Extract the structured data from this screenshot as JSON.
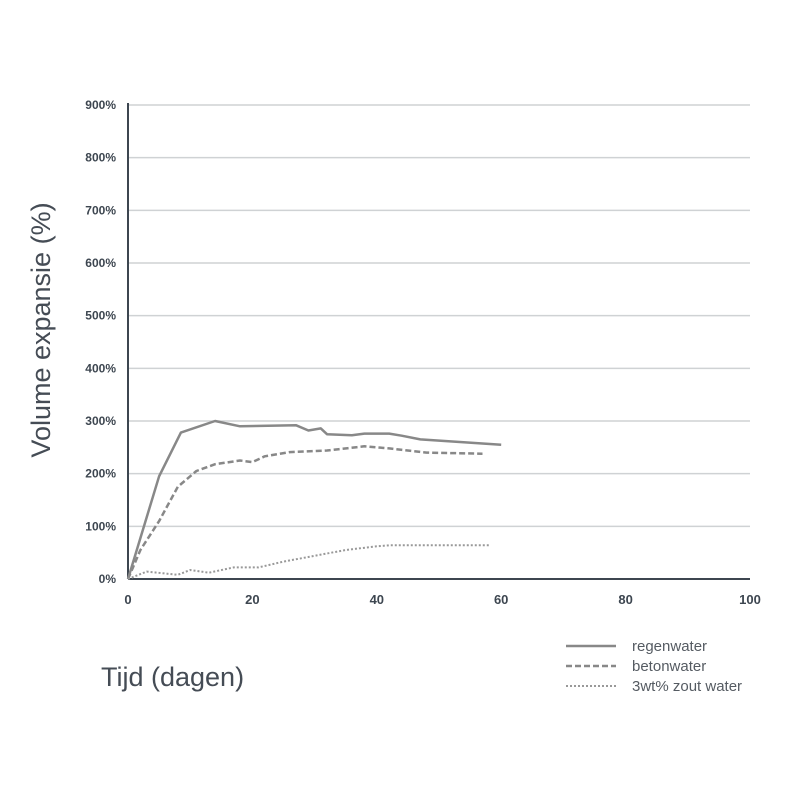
{
  "chart_data": {
    "type": "line",
    "title": "",
    "xlabel": "Tijd (dagen)",
    "ylabel": "Volume expansie (%)",
    "xlim": [
      0,
      100
    ],
    "ylim": [
      0,
      900
    ],
    "x_ticks": [
      0,
      20,
      40,
      60,
      80,
      100
    ],
    "x_tick_labels": [
      "0",
      "20",
      "40",
      "60",
      "80",
      "100"
    ],
    "y_ticks": [
      0,
      100,
      200,
      300,
      400,
      500,
      600,
      700,
      800,
      900
    ],
    "y_tick_labels": [
      "0%",
      "100%",
      "200%",
      "300%",
      "400%",
      "500%",
      "600%",
      "700%",
      "800%",
      "900%"
    ],
    "grid": "horizontal",
    "legend_position": "bottom-right",
    "series": [
      {
        "name": "regenwater",
        "style": "solid",
        "color": "#888888",
        "x": [
          0,
          5,
          8.5,
          14,
          18,
          27,
          29,
          31,
          32,
          36,
          38,
          42,
          44,
          47,
          60
        ],
        "y": [
          0,
          195,
          278,
          300,
          290,
          292,
          282,
          286,
          275,
          273,
          276,
          276,
          272,
          265,
          255
        ]
      },
      {
        "name": "betonwater",
        "style": "dashed",
        "color": "#888888",
        "x": [
          0,
          2,
          5,
          8,
          11,
          14,
          18,
          20,
          22,
          26,
          32,
          38,
          42,
          48,
          57
        ],
        "y": [
          0,
          55,
          110,
          175,
          205,
          218,
          225,
          222,
          233,
          241,
          244,
          252,
          248,
          240,
          238
        ]
      },
      {
        "name": "3wt% zout water",
        "style": "dotted",
        "color": "#999999",
        "x": [
          0,
          3,
          8,
          10,
          13,
          17,
          21,
          25,
          30,
          35,
          40,
          42,
          50,
          58
        ],
        "y": [
          0,
          14,
          8,
          17,
          12,
          22,
          22,
          33,
          44,
          55,
          62,
          64,
          64,
          64
        ]
      }
    ]
  }
}
